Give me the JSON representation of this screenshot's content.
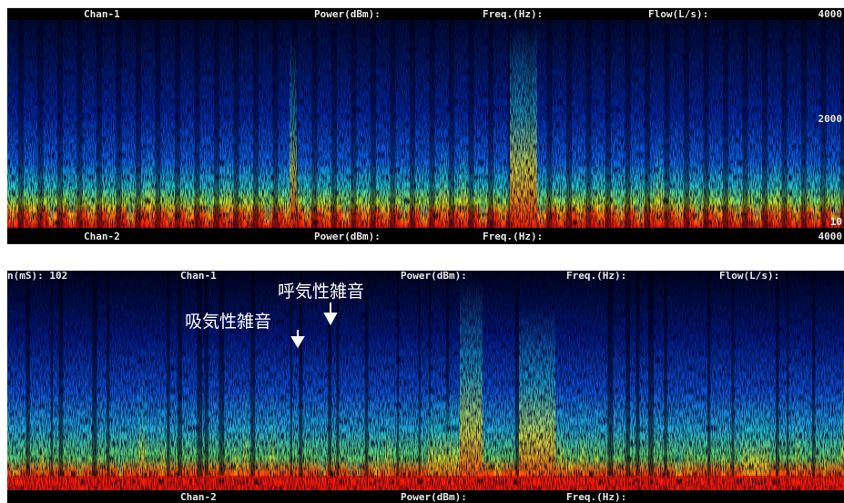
{
  "panels": [
    {
      "header": {
        "channel": "Chan-1",
        "power": "Power(dBm):",
        "freq": "Freq.(Hz):",
        "flow": "Flow(L/s):",
        "max": "4000"
      },
      "axis_labels": {
        "mid": "2000",
        "min": "10"
      },
      "footer": {
        "channel": "Chan-2",
        "power": "Power(dBm):",
        "freq": "Freq.(Hz):",
        "max": "4000"
      }
    },
    {
      "header": {
        "time": "n(mS): 102",
        "channel": "Chan-1",
        "power": "Power(dBm):",
        "freq": "Freq.(Hz):",
        "flow": "Flow(L/s):"
      },
      "footer": {
        "channel": "Chan-2",
        "power": "Power(dBm):",
        "freq": "Freq.(Hz):"
      },
      "annotations": {
        "inspiratory": "吸気性雑音",
        "expiratory": "呼気性雑音"
      }
    }
  ]
}
